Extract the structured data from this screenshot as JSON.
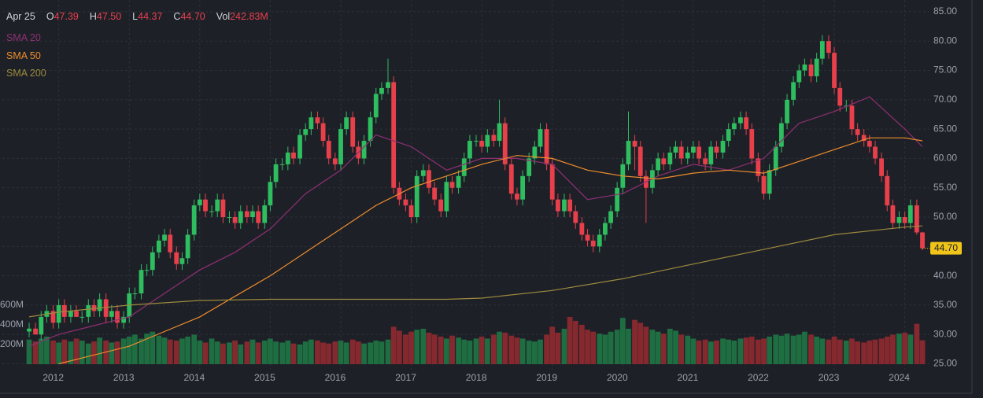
{
  "header": {
    "date": "Apr 25",
    "items": [
      {
        "key": "O",
        "text": "47.39"
      },
      {
        "key": "H",
        "text": "47.50"
      },
      {
        "key": "L",
        "text": "44.37"
      },
      {
        "key": "C",
        "text": "44.70"
      },
      {
        "key": "Vol",
        "text": "242.83M"
      }
    ]
  },
  "chart_data": {
    "type": "candlestick",
    "x": [
      2011.58,
      2011.67,
      2011.75,
      2011.83,
      2011.92,
      2012,
      2012.08,
      2012.17,
      2012.25,
      2012.33,
      2012.42,
      2012.5,
      2012.58,
      2012.67,
      2012.75,
      2012.83,
      2012.92,
      2013,
      2013.08,
      2013.17,
      2013.25,
      2013.33,
      2013.42,
      2013.5,
      2013.58,
      2013.67,
      2013.75,
      2013.83,
      2013.92,
      2014,
      2014.08,
      2014.17,
      2014.25,
      2014.33,
      2014.42,
      2014.5,
      2014.58,
      2014.67,
      2014.75,
      2014.83,
      2014.92,
      2015,
      2015.08,
      2015.17,
      2015.25,
      2015.33,
      2015.42,
      2015.5,
      2015.58,
      2015.67,
      2015.75,
      2015.83,
      2015.92,
      2016,
      2016.08,
      2016.17,
      2016.25,
      2016.33,
      2016.42,
      2016.5,
      2016.58,
      2016.67,
      2016.75,
      2016.83,
      2016.92,
      2017,
      2017.08,
      2017.17,
      2017.25,
      2017.33,
      2017.42,
      2017.5,
      2017.58,
      2017.67,
      2017.75,
      2017.83,
      2017.92,
      2018,
      2018.08,
      2018.17,
      2018.25,
      2018.33,
      2018.42,
      2018.5,
      2018.58,
      2018.67,
      2018.75,
      2018.83,
      2018.92,
      2019,
      2019.08,
      2019.17,
      2019.25,
      2019.33,
      2019.42,
      2019.5,
      2019.58,
      2019.67,
      2019.75,
      2019.83,
      2019.92,
      2020,
      2020.08,
      2020.17,
      2020.25,
      2020.33,
      2020.42,
      2020.5,
      2020.58,
      2020.67,
      2020.75,
      2020.83,
      2020.92,
      2021,
      2021.08,
      2021.17,
      2021.25,
      2021.33,
      2021.42,
      2021.5,
      2021.58,
      2021.67,
      2021.75,
      2021.83,
      2021.92,
      2022,
      2022.08,
      2022.17,
      2022.25,
      2022.33,
      2022.42,
      2022.5,
      2022.58,
      2022.67,
      2022.75,
      2022.83,
      2022.92,
      2023,
      2023.08,
      2023.17,
      2023.25,
      2023.33,
      2023.42,
      2023.5,
      2023.58,
      2023.67,
      2023.75,
      2023.83,
      2023.92,
      2024,
      2024.08,
      2024.17,
      2024.25
    ],
    "open": [
      30.5,
      31,
      30,
      33,
      34,
      32,
      35,
      33,
      34,
      33,
      33,
      35,
      34,
      36,
      33,
      34,
      32,
      33,
      37,
      37,
      41,
      41,
      44,
      46,
      47,
      44,
      42,
      43,
      47,
      52,
      53,
      51,
      51,
      53,
      50,
      50,
      49,
      51,
      50,
      51,
      49,
      52,
      56,
      59,
      59,
      61,
      60,
      64,
      65,
      67,
      66,
      63,
      60,
      59,
      65,
      67,
      62,
      60,
      63,
      67,
      71,
      72,
      73,
      55,
      53,
      52,
      50,
      57,
      58,
      55,
      53,
      51,
      56,
      55,
      57,
      60,
      63,
      63,
      62,
      64,
      63,
      66,
      59,
      54,
      53,
      57,
      60,
      62,
      65,
      59,
      53,
      51,
      53,
      51,
      49,
      47,
      46,
      45,
      47,
      49,
      51,
      55,
      59,
      63,
      62,
      57,
      55,
      58,
      60,
      59,
      61,
      62,
      60,
      61,
      62,
      60,
      59,
      62,
      61,
      63,
      65,
      66,
      67,
      65,
      60,
      57,
      54,
      58,
      62,
      66,
      70,
      73,
      75,
      76,
      74,
      77,
      80,
      78,
      72,
      69,
      69,
      65,
      64,
      63,
      62,
      60,
      57,
      52,
      49,
      50,
      49,
      52,
      47.39
    ],
    "high": [
      32,
      32,
      34,
      35,
      35,
      36,
      36,
      35,
      35,
      34,
      36,
      36,
      37,
      37,
      35,
      35,
      34,
      38,
      38,
      42,
      42,
      45,
      47,
      48,
      48,
      45,
      44,
      48,
      53,
      54,
      54,
      52,
      54,
      54,
      51,
      51,
      52,
      52,
      52,
      52,
      53,
      57,
      60,
      60,
      62,
      62,
      65,
      66,
      68,
      68,
      67,
      64,
      61,
      66,
      68,
      68,
      63,
      64,
      68,
      72,
      73,
      77,
      74,
      56,
      54,
      53,
      58,
      59,
      59,
      56,
      54,
      57,
      57,
      58,
      61,
      64,
      64,
      64,
      65,
      65,
      70,
      67,
      60,
      55,
      58,
      61,
      63,
      66,
      66,
      60,
      54,
      54,
      54,
      52,
      50,
      48,
      47,
      48,
      50,
      52,
      56,
      60,
      68,
      64,
      63,
      58,
      59,
      61,
      61,
      62,
      63,
      63,
      62,
      63,
      63,
      61,
      63,
      63,
      64,
      66,
      67,
      68,
      68,
      66,
      61,
      58,
      59,
      63,
      67,
      71,
      74,
      76,
      77,
      77,
      78,
      81,
      81,
      79,
      73,
      70,
      70,
      66,
      65,
      64,
      63,
      61,
      58,
      53,
      51,
      51,
      53,
      53,
      47.5
    ],
    "low": [
      29.5,
      30,
      29,
      32,
      31,
      31,
      32,
      32,
      33,
      32,
      32,
      33,
      33,
      32,
      32,
      31,
      31,
      32,
      36,
      36,
      40,
      40,
      43,
      45,
      43,
      41,
      41,
      42,
      46,
      51,
      50,
      50,
      50,
      49,
      49,
      48,
      48,
      49,
      49,
      48,
      48,
      51,
      55,
      58,
      58,
      59,
      59,
      63,
      64,
      65,
      62,
      59,
      58,
      58,
      64,
      61,
      59,
      59,
      62,
      66,
      70,
      71,
      54,
      52,
      51,
      49,
      49,
      56,
      54,
      52,
      50,
      50,
      54,
      54,
      56,
      59,
      62,
      61,
      61,
      62,
      62,
      58,
      53,
      52,
      52,
      56,
      59,
      61,
      58,
      52,
      50,
      50,
      50,
      48,
      46,
      45,
      44,
      44,
      46,
      48,
      50,
      54,
      58,
      58,
      56,
      49,
      54,
      57,
      58,
      58,
      60,
      59,
      59,
      60,
      59,
      58,
      58,
      60,
      60,
      62,
      64,
      65,
      64,
      59,
      56,
      53,
      53,
      57,
      61,
      65,
      69,
      72,
      74,
      73,
      73,
      76,
      77,
      71,
      68,
      68,
      64,
      63,
      62,
      61,
      59,
      56,
      51,
      48,
      48,
      48,
      48,
      47,
      44.37
    ],
    "close": [
      31,
      30,
      33,
      34,
      32,
      35,
      33,
      34,
      33,
      33,
      35,
      34,
      36,
      33,
      34,
      32,
      33,
      37,
      37,
      41,
      41,
      44,
      46,
      47,
      44,
      42,
      43,
      47,
      52,
      53,
      51,
      51,
      53,
      50,
      50,
      49,
      51,
      50,
      51,
      49,
      52,
      56,
      59,
      59,
      61,
      60,
      64,
      65,
      67,
      66,
      63,
      60,
      59,
      65,
      67,
      62,
      60,
      63,
      67,
      71,
      72,
      73,
      55,
      53,
      52,
      50,
      57,
      58,
      55,
      53,
      51,
      56,
      55,
      57,
      60,
      63,
      63,
      62,
      64,
      63,
      66,
      59,
      54,
      53,
      57,
      60,
      62,
      65,
      59,
      53,
      51,
      53,
      51,
      49,
      47,
      46,
      45,
      47,
      49,
      51,
      55,
      59,
      63,
      62,
      57,
      55,
      58,
      60,
      59,
      61,
      62,
      60,
      61,
      62,
      60,
      59,
      62,
      61,
      63,
      65,
      66,
      67,
      65,
      60,
      57,
      54,
      58,
      62,
      66,
      70,
      73,
      75,
      76,
      74,
      77,
      80,
      78,
      72,
      69,
      69,
      65,
      64,
      63,
      62,
      60,
      57,
      52,
      49,
      50,
      49,
      52,
      47.39,
      44.7
    ],
    "volume": [
      250,
      230,
      260,
      280,
      240,
      220,
      250,
      230,
      260,
      240,
      210,
      230,
      270,
      240,
      220,
      230,
      260,
      280,
      300,
      260,
      310,
      330,
      290,
      270,
      250,
      240,
      260,
      280,
      300,
      240,
      220,
      260,
      230,
      210,
      220,
      240,
      200,
      230,
      250,
      220,
      240,
      260,
      230,
      220,
      240,
      210,
      200,
      230,
      250,
      240,
      220,
      210,
      230,
      240,
      220,
      250,
      230,
      210,
      220,
      240,
      230,
      250,
      380,
      340,
      300,
      330,
      350,
      360,
      320,
      300,
      280,
      260,
      290,
      270,
      250,
      240,
      260,
      280,
      260,
      300,
      330,
      320,
      290,
      270,
      260,
      240,
      230,
      250,
      300,
      380,
      320,
      360,
      480,
      440,
      400,
      350,
      330,
      310,
      300,
      330,
      350,
      470,
      360,
      450,
      420,
      380,
      350,
      330,
      310,
      360,
      340,
      300,
      290,
      260,
      240,
      250,
      230,
      240,
      260,
      250,
      240,
      260,
      270,
      280,
      250,
      260,
      280,
      300,
      290,
      310,
      290,
      300,
      330,
      300,
      280,
      260,
      250,
      280,
      250,
      240,
      260,
      230,
      220,
      240,
      250,
      260,
      280,
      300,
      310,
      320,
      300,
      410,
      242.83
    ],
    "up_color": "#2ebd5f",
    "down_color": "#e8404b",
    "volume_up_color": "#1e6e42",
    "volume_down_color": "#86292f",
    "xlim": [
      2011.2,
      2024.35
    ],
    "xticks": [
      2012,
      2013,
      2014,
      2015,
      2016,
      2017,
      2018,
      2019,
      2020,
      2021,
      2022,
      2023,
      2024
    ],
    "ylim": [
      24,
      87
    ],
    "yticks": [
      {
        "value": 25,
        "label": "25.00"
      },
      {
        "value": 30,
        "label": "30.00"
      },
      {
        "value": 35,
        "label": "35.00"
      },
      {
        "value": 40,
        "label": "40.00"
      },
      {
        "value": 45,
        "label": "45.00"
      },
      {
        "value": 50,
        "label": "50.00"
      },
      {
        "value": 55,
        "label": "55.00"
      },
      {
        "value": 60,
        "label": "60.00"
      },
      {
        "value": 65,
        "label": "65.00"
      },
      {
        "value": 70,
        "label": "70.00"
      },
      {
        "value": 75,
        "label": "75.00"
      },
      {
        "value": 80,
        "label": "80.00"
      },
      {
        "value": 85,
        "label": "85.00"
      }
    ],
    "volume_ylim": [
      0,
      3700
    ],
    "volume_ticks": [
      {
        "value": 200,
        "label": "200M"
      },
      {
        "value": 400,
        "label": "400M"
      },
      {
        "value": 600,
        "label": "600M"
      }
    ],
    "grid": true,
    "series": [
      {
        "name": "SMA 20",
        "color": "#8e2f72",
        "x": [
          2011.58,
          2012,
          2012.5,
          2013,
          2013.5,
          2014,
          2014.5,
          2015,
          2015.5,
          2016,
          2016.5,
          2017,
          2017.5,
          2018,
          2018.5,
          2019,
          2019.5,
          2020,
          2020.5,
          2021,
          2021.5,
          2022,
          2022.5,
          2023,
          2023.5,
          2024,
          2024.25
        ],
        "values": [
          28,
          30,
          31.5,
          33,
          37,
          41,
          44,
          48,
          54,
          58,
          64,
          62,
          58,
          60,
          60,
          59,
          53,
          54,
          57,
          59,
          58,
          60,
          66,
          68,
          70.5,
          65,
          62
        ]
      },
      {
        "name": "SMA 50",
        "color": "#ee8d2c",
        "x": [
          2012,
          2012.5,
          2013,
          2013.5,
          2014,
          2014.5,
          2015,
          2015.5,
          2016,
          2016.5,
          2017,
          2017.5,
          2018,
          2018.5,
          2019,
          2019.5,
          2020,
          2020.5,
          2021,
          2021.5,
          2022,
          2022.5,
          2023,
          2023.5,
          2024,
          2024.25
        ],
        "values": [
          25,
          26.5,
          28,
          30.5,
          33,
          36.5,
          40,
          44,
          48,
          52,
          55,
          57,
          59,
          60.5,
          60,
          58,
          57,
          56.5,
          57.5,
          58,
          57.5,
          59.5,
          61.5,
          63.5,
          63.5,
          63
        ]
      },
      {
        "name": "SMA 200",
        "color": "#9c8a3c",
        "x": [
          2011.58,
          2012,
          2013,
          2014,
          2015,
          2016,
          2017,
          2017.5,
          2018,
          2019,
          2020,
          2021,
          2022,
          2023,
          2024,
          2024.25
        ],
        "values": [
          33,
          33.8,
          35,
          35.8,
          36,
          36,
          36,
          36,
          36.2,
          37.5,
          39.5,
          42,
          44.5,
          47,
          48.3,
          48.5
        ]
      }
    ]
  }
}
